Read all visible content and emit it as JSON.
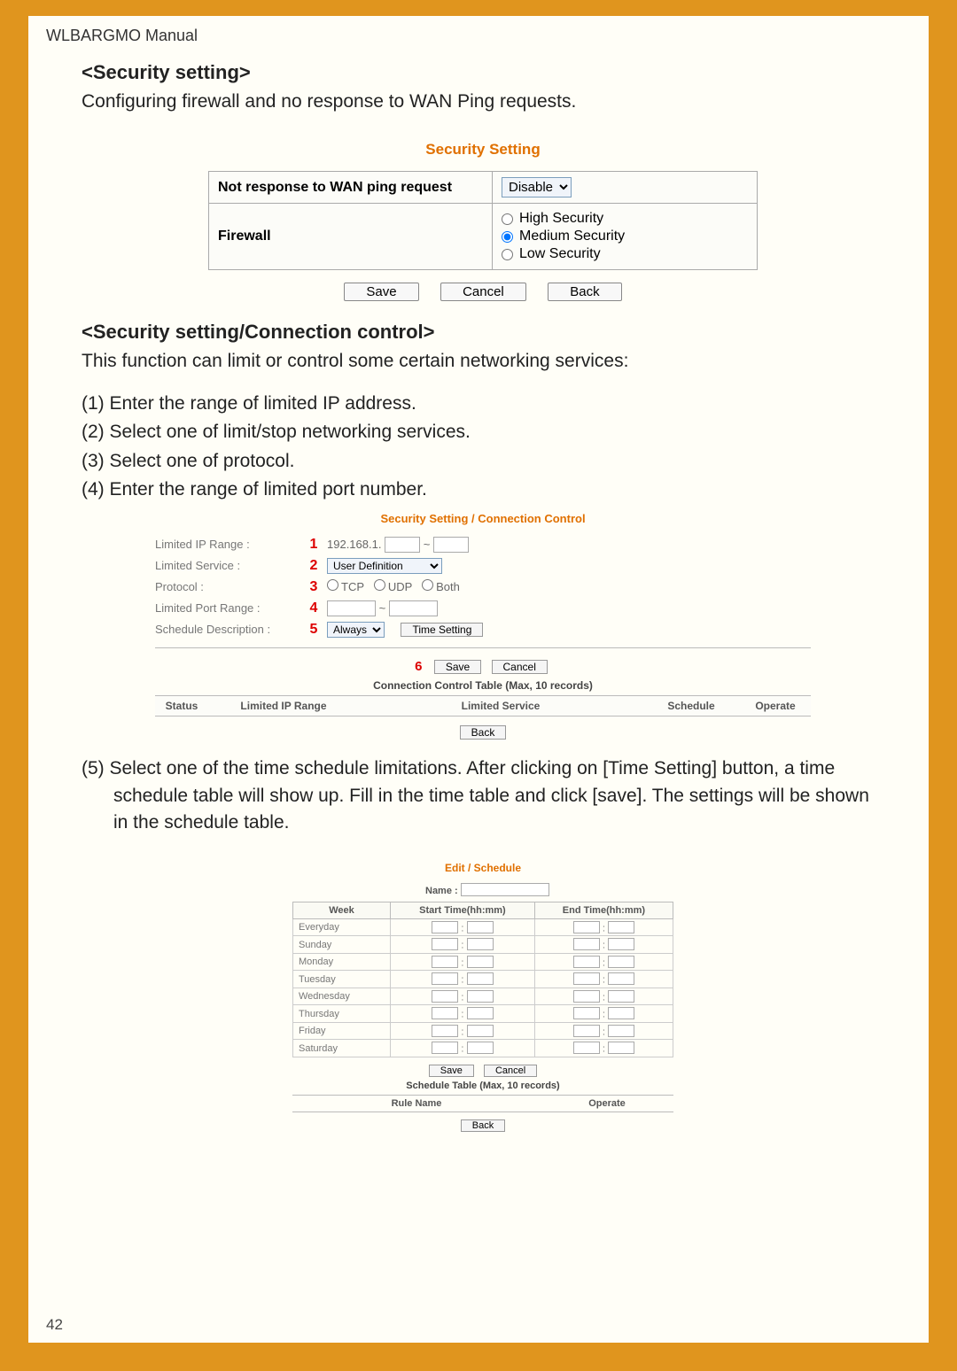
{
  "header": {
    "manual_title": "WLBARGMO Manual"
  },
  "sec1": {
    "title": "<Security setting>",
    "desc": "Configuring firewall and no response to WAN Ping requests.",
    "panel_title": "Security Setting",
    "row1_label": "Not response to WAN ping request",
    "row1_value": "Disable",
    "row2_label": "Firewall",
    "radio_high": "High Security",
    "radio_med": "Medium Security",
    "radio_low": "Low Security",
    "btn_save": "Save",
    "btn_cancel": "Cancel",
    "btn_back": "Back"
  },
  "sec2": {
    "title": "<Security setting/Connection control>",
    "desc": "This function can limit or control some certain networking services:",
    "steps": [
      "(1) Enter the range of limited IP address.",
      "(2) Select one of limit/stop networking services.",
      "(3) Select one of protocol.",
      "(4) Enter the range of limited port number."
    ],
    "panel_title": "Security Setting / Connection Control",
    "r1_label": "Limited IP Range :",
    "r1_num": "1",
    "r1_prefix": "192.168.1.",
    "r1_tilde": "~",
    "r2_label": "Limited Service :",
    "r2_num": "2",
    "r2_value": "User Definition",
    "r3_label": "Protocol :",
    "r3_num": "3",
    "r3_tcp": "TCP",
    "r3_udp": "UDP",
    "r3_both": "Both",
    "r4_label": "Limited Port Range :",
    "r4_num": "4",
    "r4_tilde": "~",
    "r5_label": "Schedule Description :",
    "r5_num": "5",
    "r5_value": "Always",
    "r5_btn": "Time Setting",
    "actions_num": "6",
    "btn_save": "Save",
    "btn_cancel": "Cancel",
    "table_title": "Connection Control Table (Max, 10 records)",
    "th_status": "Status",
    "th_ip": "Limited IP Range",
    "th_service": "Limited Service",
    "th_schedule": "Schedule",
    "th_operate": "Operate",
    "btn_back": "Back"
  },
  "step5": "(5) Select one of the time schedule limitations.  After clicking on [Time Setting] button, a time schedule table will show up. Fill in the time table and click [save]. The settings will be shown in the schedule table.",
  "sec3": {
    "panel_title": "Edit / Schedule",
    "name_label": "Name :",
    "th_week": "Week",
    "th_start": "Start Time(hh:mm)",
    "th_end": "End Time(hh:mm)",
    "days": [
      "Everyday",
      "Sunday",
      "Monday",
      "Tuesday",
      "Wednesday",
      "Thursday",
      "Friday",
      "Saturday"
    ],
    "btn_save": "Save",
    "btn_cancel": "Cancel",
    "table2_title": "Schedule Table (Max, 10 records)",
    "th_rule": "Rule Name",
    "th_operate": "Operate",
    "btn_back": "Back"
  },
  "page_num": "42",
  "colors": {
    "accent": "#e0951e",
    "panel_title": "#e07000",
    "red": "#d00000"
  }
}
